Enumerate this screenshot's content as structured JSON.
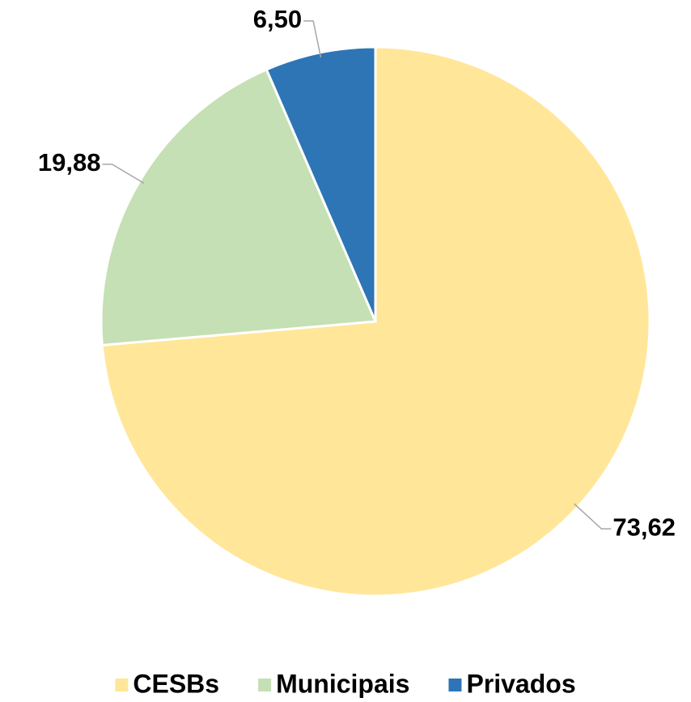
{
  "chart_data": {
    "type": "pie",
    "categories": [
      "CESBs",
      "Municipais",
      "Privados"
    ],
    "values": [
      73.62,
      19.88,
      6.5
    ],
    "value_labels": [
      "73,62",
      "19,88",
      "6,50"
    ],
    "colors": [
      "#ffe699",
      "#c5e0b4",
      "#2e75b6"
    ],
    "legend": "bottom"
  }
}
